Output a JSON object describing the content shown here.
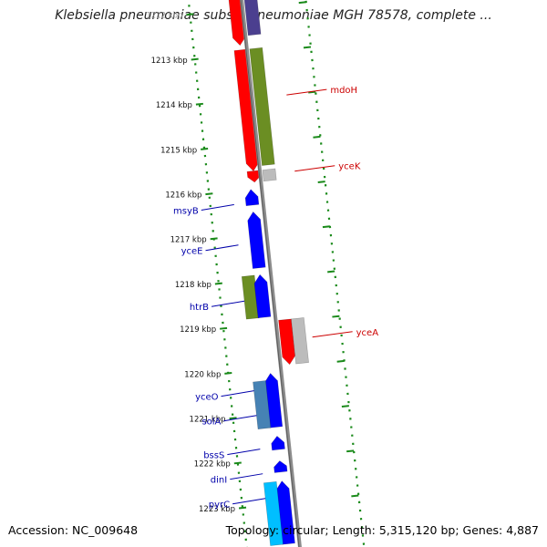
{
  "title": "Klebsiella pneumoniae subsp. pneumoniae MGH 78578, complete ...",
  "footer": {
    "accession": "Accession: NC_009648",
    "stats": "Topology: circular; Length: 5,315,120 bp; Genes: 4,887"
  },
  "colors": {
    "backbone": "#8c8c8c",
    "ruler": "#1a8a1a",
    "forward_label": "#0000aa",
    "reverse_label": "#cc0000",
    "red_feature": "#ff0000",
    "blue_feature": "#0000ff",
    "olive_feature": "#6b8e23",
    "steel_feature": "#4682b4",
    "cyan_feature": "#00bfff",
    "grey_feature": "#bcbcbc",
    "purple_feature": "#4b3f8f"
  },
  "ruler_labels": [
    {
      "text": "1212 kbp",
      "pos": 1212
    },
    {
      "text": "1213 kbp",
      "pos": 1213
    },
    {
      "text": "1214 kbp",
      "pos": 1214
    },
    {
      "text": "1215 kbp",
      "pos": 1215
    },
    {
      "text": "1216 kbp",
      "pos": 1216
    },
    {
      "text": "1217 kbp",
      "pos": 1217
    },
    {
      "text": "1218 kbp",
      "pos": 1218
    },
    {
      "text": "1219 kbp",
      "pos": 1219
    },
    {
      "text": "1220 kbp",
      "pos": 1220
    },
    {
      "text": "1221 kbp",
      "pos": 1221
    },
    {
      "text": "1222 kbp",
      "pos": 1222
    },
    {
      "text": "1223 kbp",
      "pos": 1223
    }
  ],
  "features": [
    {
      "start": 1211.2,
      "end": 1212.8,
      "lane": -1,
      "color": "red_feature",
      "arrow": true
    },
    {
      "start": 1211.2,
      "end": 1212.6,
      "lane": 1,
      "color": "purple_feature",
      "arrow": false
    },
    {
      "start": 1212.9,
      "end": 1215.6,
      "lane": -1,
      "color": "red_feature",
      "arrow": true
    },
    {
      "start": 1212.9,
      "end": 1215.5,
      "lane": 1,
      "color": "olive_feature",
      "arrow": false
    },
    {
      "start": 1215.6,
      "end": 1215.85,
      "lane": -1,
      "color": "red_feature",
      "arrow": true
    },
    {
      "start": 1215.6,
      "end": 1215.85,
      "lane": 1,
      "color": "grey_feature",
      "arrow": false
    },
    {
      "start": 1216.0,
      "end": 1216.35,
      "lane": -2,
      "color": "blue_feature",
      "arrow": true
    },
    {
      "start": 1216.5,
      "end": 1217.75,
      "lane": -2,
      "color": "blue_feature",
      "arrow": true
    },
    {
      "start": 1217.9,
      "end": 1218.85,
      "lane": -3,
      "color": "olive_feature",
      "arrow": false
    },
    {
      "start": 1217.9,
      "end": 1218.85,
      "lane": -2,
      "color": "blue_feature",
      "arrow": true
    },
    {
      "start": 1218.95,
      "end": 1219.95,
      "lane": 1,
      "color": "red_feature",
      "arrow": true
    },
    {
      "start": 1218.95,
      "end": 1219.95,
      "lane": 2,
      "color": "grey_feature",
      "arrow": false
    },
    {
      "start": 1220.1,
      "end": 1221.3,
      "lane": -2,
      "color": "blue_feature",
      "arrow": true
    },
    {
      "start": 1220.25,
      "end": 1221.3,
      "lane": -3,
      "color": "steel_feature",
      "arrow": false
    },
    {
      "start": 1221.5,
      "end": 1221.8,
      "lane": -2,
      "color": "blue_feature",
      "arrow": true
    },
    {
      "start": 1222.05,
      "end": 1222.3,
      "lane": -2,
      "color": "blue_feature",
      "arrow": true
    },
    {
      "start": 1222.5,
      "end": 1223.9,
      "lane": -2,
      "color": "blue_feature",
      "arrow": true
    },
    {
      "start": 1222.5,
      "end": 1223.9,
      "lane": -3,
      "color": "cyan_feature",
      "arrow": false
    }
  ],
  "gene_labels": [
    {
      "text": "mdoH",
      "pos": 1214.0,
      "side": "right",
      "color": "reverse_label"
    },
    {
      "text": "yceK",
      "pos": 1215.7,
      "side": "right",
      "color": "reverse_label"
    },
    {
      "text": "msyB",
      "pos": 1216.3,
      "side": "left",
      "color": "forward_label"
    },
    {
      "text": "yceE",
      "pos": 1217.2,
      "side": "left",
      "color": "forward_label"
    },
    {
      "text": "htrB",
      "pos": 1218.45,
      "side": "left",
      "color": "forward_label"
    },
    {
      "text": "yceA",
      "pos": 1219.4,
      "side": "right",
      "color": "reverse_label"
    },
    {
      "text": "yceO",
      "pos": 1220.45,
      "side": "left",
      "color": "forward_label"
    },
    {
      "text": "solA",
      "pos": 1221.0,
      "side": "left",
      "color": "forward_label"
    },
    {
      "text": "bssS",
      "pos": 1221.75,
      "side": "left",
      "color": "forward_label"
    },
    {
      "text": "dinI",
      "pos": 1222.3,
      "side": "left",
      "color": "forward_label"
    },
    {
      "text": "pyrC",
      "pos": 1222.85,
      "side": "left",
      "color": "forward_label"
    }
  ]
}
